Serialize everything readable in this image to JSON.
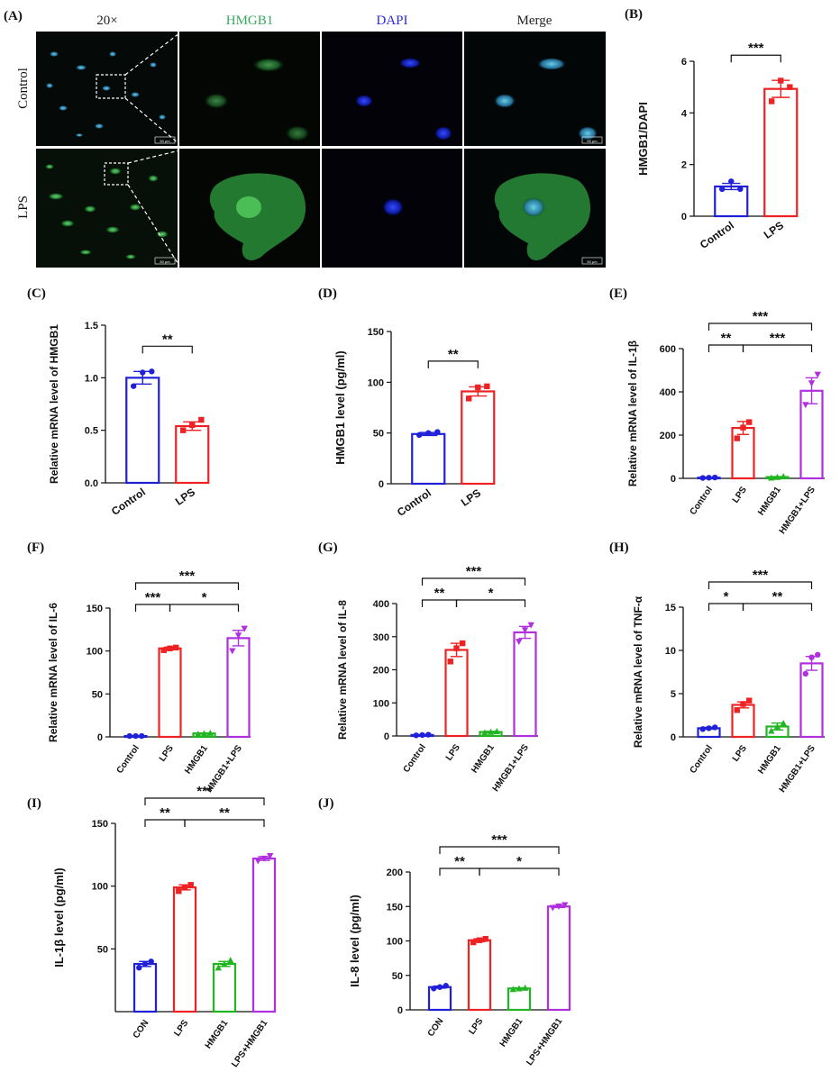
{
  "panel_a": {
    "label": "(A)",
    "col_headers": [
      {
        "text": "20×",
        "color": "#222222"
      },
      {
        "text": "HMGB1",
        "color": "#3aa860"
      },
      {
        "text": "DAPI",
        "color": "#2a2adf"
      },
      {
        "text": "Merge",
        "color": "#222222"
      }
    ],
    "row_labels": [
      "Control",
      "LPS"
    ],
    "scale_bar_text": "50 μm"
  },
  "chart_data": [
    {
      "id": "B",
      "label": "(B)",
      "type": "bar",
      "categories": [
        "Control",
        "LPS"
      ],
      "colors": [
        "#2020d8",
        "#ee2222"
      ],
      "values": [
        1.15,
        4.93
      ],
      "errors": [
        0.12,
        0.33
      ],
      "points": [
        [
          1.05,
          1.35,
          1.05
        ],
        [
          4.45,
          5.25,
          5.0
        ]
      ],
      "markers": [
        "circle",
        "square"
      ],
      "ylabel": "HMGB1/DAPI",
      "ylim": [
        0,
        6
      ],
      "yticks": [
        0,
        2,
        4,
        6
      ],
      "sig": [
        {
          "a": 0,
          "b": 1,
          "text": "***"
        }
      ]
    },
    {
      "id": "C",
      "label": "(C)",
      "type": "bar",
      "categories": [
        "Control",
        "LPS"
      ],
      "colors": [
        "#2020d8",
        "#ee2222"
      ],
      "values": [
        1.0,
        0.54
      ],
      "errors": [
        0.06,
        0.04
      ],
      "points": [
        [
          0.92,
          1.05,
          1.06
        ],
        [
          0.5,
          0.55,
          0.6
        ]
      ],
      "markers": [
        "circle",
        "square"
      ],
      "ylabel": "Relative mRNA level of HMGB1",
      "ylim": [
        0,
        1.5
      ],
      "yticks": [
        "0.0",
        "0.5",
        "1.0",
        "1.5"
      ],
      "sig": [
        {
          "a": 0,
          "b": 1,
          "text": "**"
        }
      ]
    },
    {
      "id": "D",
      "label": "(D)",
      "type": "bar",
      "categories": [
        "Control",
        "LPS"
      ],
      "colors": [
        "#2020d8",
        "#ee2222"
      ],
      "values": [
        49,
        91
      ],
      "errors": [
        1.5,
        4.5
      ],
      "points": [
        [
          48,
          50,
          51
        ],
        [
          84,
          95,
          96
        ]
      ],
      "markers": [
        "circle",
        "square"
      ],
      "ylabel": "HMGB1 level (pg/ml)",
      "ylim": [
        0,
        150
      ],
      "yticks": [
        0,
        50,
        100,
        150
      ],
      "sig": [
        {
          "a": 0,
          "b": 1,
          "text": "**"
        }
      ]
    },
    {
      "id": "E",
      "label": "(E)",
      "type": "bar",
      "categories": [
        "Control",
        "LPS",
        "HMGB1",
        "HMGB1+LPS"
      ],
      "colors": [
        "#2020d8",
        "#ee2222",
        "#22b522",
        "#b030e0"
      ],
      "values": [
        3,
        233,
        6,
        405
      ],
      "errors": [
        1,
        30,
        2,
        60
      ],
      "points": [
        [
          2,
          3,
          4
        ],
        [
          185,
          235,
          260
        ],
        [
          3,
          6,
          9
        ],
        [
          340,
          440,
          480
        ]
      ],
      "markers": [
        "circle",
        "square",
        "triangle-up",
        "triangle-down"
      ],
      "ylabel": "Relative mRNA level of IL-1β",
      "ylim": [
        0,
        600
      ],
      "yticks": [
        0,
        200,
        400,
        600
      ],
      "sig": [
        {
          "a": 0,
          "b": 1,
          "text": "**"
        },
        {
          "a": 1,
          "b": 3,
          "text": "***"
        },
        {
          "a": 0,
          "b": 3,
          "text": "***"
        }
      ]
    },
    {
      "id": "F",
      "label": "(F)",
      "type": "bar",
      "categories": [
        "Control",
        "LPS",
        "HMGB1",
        "HMGB1+LPS"
      ],
      "colors": [
        "#2020d8",
        "#ee2222",
        "#22b522",
        "#b030e0"
      ],
      "values": [
        1,
        103,
        4,
        115
      ],
      "errors": [
        0.3,
        1.5,
        0.5,
        9
      ],
      "points": [
        [
          1,
          1,
          1
        ],
        [
          101,
          103,
          104
        ],
        [
          3.5,
          4,
          4.5
        ],
        [
          100,
          118,
          126
        ]
      ],
      "markers": [
        "circle",
        "square",
        "triangle-up",
        "triangle-down"
      ],
      "ylabel": "Relative mRNA level of IL-6",
      "ylim": [
        0,
        150
      ],
      "yticks": [
        0,
        50,
        100,
        150
      ],
      "sig": [
        {
          "a": 0,
          "b": 1,
          "text": "***"
        },
        {
          "a": 1,
          "b": 3,
          "text": "*"
        },
        {
          "a": 0,
          "b": 3,
          "text": "***"
        }
      ]
    },
    {
      "id": "G",
      "label": "(G)",
      "type": "bar",
      "categories": [
        "Control",
        "LPS",
        "HMGB1",
        "HMGB1+LPS"
      ],
      "colors": [
        "#2020d8",
        "#ee2222",
        "#22b522",
        "#b030e0"
      ],
      "values": [
        3,
        260,
        12,
        313
      ],
      "errors": [
        0.5,
        20,
        2,
        18
      ],
      "points": [
        [
          2,
          3,
          4
        ],
        [
          225,
          265,
          280
        ],
        [
          10,
          12,
          14
        ],
        [
          285,
          320,
          335
        ]
      ],
      "markers": [
        "circle",
        "square",
        "triangle-up",
        "triangle-down"
      ],
      "ylabel": "Relative mRNA level of IL-8",
      "ylim": [
        0,
        400
      ],
      "yticks": [
        0,
        100,
        200,
        300,
        400
      ],
      "sig": [
        {
          "a": 0,
          "b": 1,
          "text": "**"
        },
        {
          "a": 1,
          "b": 3,
          "text": "*"
        },
        {
          "a": 0,
          "b": 3,
          "text": "***"
        }
      ]
    },
    {
      "id": "H",
      "label": "(H)",
      "type": "bar",
      "categories": [
        "Control",
        "LPS",
        "HMGB1",
        "HMGB1+LPS"
      ],
      "colors": [
        "#2020d8",
        "#ee2222",
        "#22b522",
        "#b030e0"
      ],
      "values": [
        1.0,
        3.7,
        1.2,
        8.5
      ],
      "errors": [
        0.1,
        0.35,
        0.4,
        0.8
      ],
      "points": [
        [
          0.9,
          1.0,
          1.1
        ],
        [
          3.1,
          3.8,
          4.2
        ],
        [
          0.7,
          1.2,
          1.6
        ],
        [
          7.3,
          9.2,
          9.5
        ]
      ],
      "markers": [
        "circle",
        "square",
        "triangle-up",
        "circle"
      ],
      "ylabel": "Relative mRNA level of TNF-α",
      "ylim": [
        0,
        15
      ],
      "yticks": [
        0,
        5,
        10,
        15
      ],
      "sig": [
        {
          "a": 0,
          "b": 1,
          "text": "*"
        },
        {
          "a": 1,
          "b": 3,
          "text": "**"
        },
        {
          "a": 0,
          "b": 3,
          "text": "***"
        }
      ]
    },
    {
      "id": "I",
      "label": "(I)",
      "type": "bar",
      "categories": [
        "CON",
        "LPS",
        "HMGB1",
        "LPS+HMGB1"
      ],
      "colors": [
        "#2020d8",
        "#ee2222",
        "#22b522",
        "#b030e0"
      ],
      "values": [
        38,
        99,
        38,
        122
      ],
      "errors": [
        2,
        2,
        2,
        1.5
      ],
      "points": [
        [
          35,
          38,
          40
        ],
        [
          96,
          99,
          101
        ],
        [
          35,
          38,
          41
        ],
        [
          120,
          122,
          124
        ]
      ],
      "markers": [
        "circle",
        "square",
        "triangle-up",
        "triangle-down"
      ],
      "ylabel": "IL-1β level (pg/ml)",
      "ylim": [
        0,
        150
      ],
      "yticks": [
        50,
        100,
        150
      ],
      "sig": [
        {
          "a": 0,
          "b": 1,
          "text": "**"
        },
        {
          "a": 1,
          "b": 3,
          "text": "**"
        },
        {
          "a": 0,
          "b": 3,
          "text": "***"
        }
      ]
    },
    {
      "id": "J",
      "label": "(J)",
      "type": "bar",
      "categories": [
        "CON",
        "LPS",
        "HMGB1",
        "LPS+HMGB1"
      ],
      "colors": [
        "#2020d8",
        "#ee2222",
        "#22b522",
        "#b030e0"
      ],
      "values": [
        33,
        101,
        31,
        150
      ],
      "errors": [
        1.5,
        2,
        1,
        1.5
      ],
      "points": [
        [
          31,
          33,
          35
        ],
        [
          98,
          101,
          103
        ],
        [
          30,
          31,
          32
        ],
        [
          148,
          150,
          152
        ]
      ],
      "markers": [
        "circle",
        "square",
        "triangle-up",
        "triangle-down"
      ],
      "ylabel": "IL-8 level (pg/ml)",
      "ylim": [
        0,
        200
      ],
      "yticks": [
        0,
        50,
        100,
        150,
        200
      ],
      "sig": [
        {
          "a": 0,
          "b": 1,
          "text": "**"
        },
        {
          "a": 1,
          "b": 3,
          "text": "*"
        },
        {
          "a": 0,
          "b": 3,
          "text": "***"
        }
      ]
    }
  ]
}
